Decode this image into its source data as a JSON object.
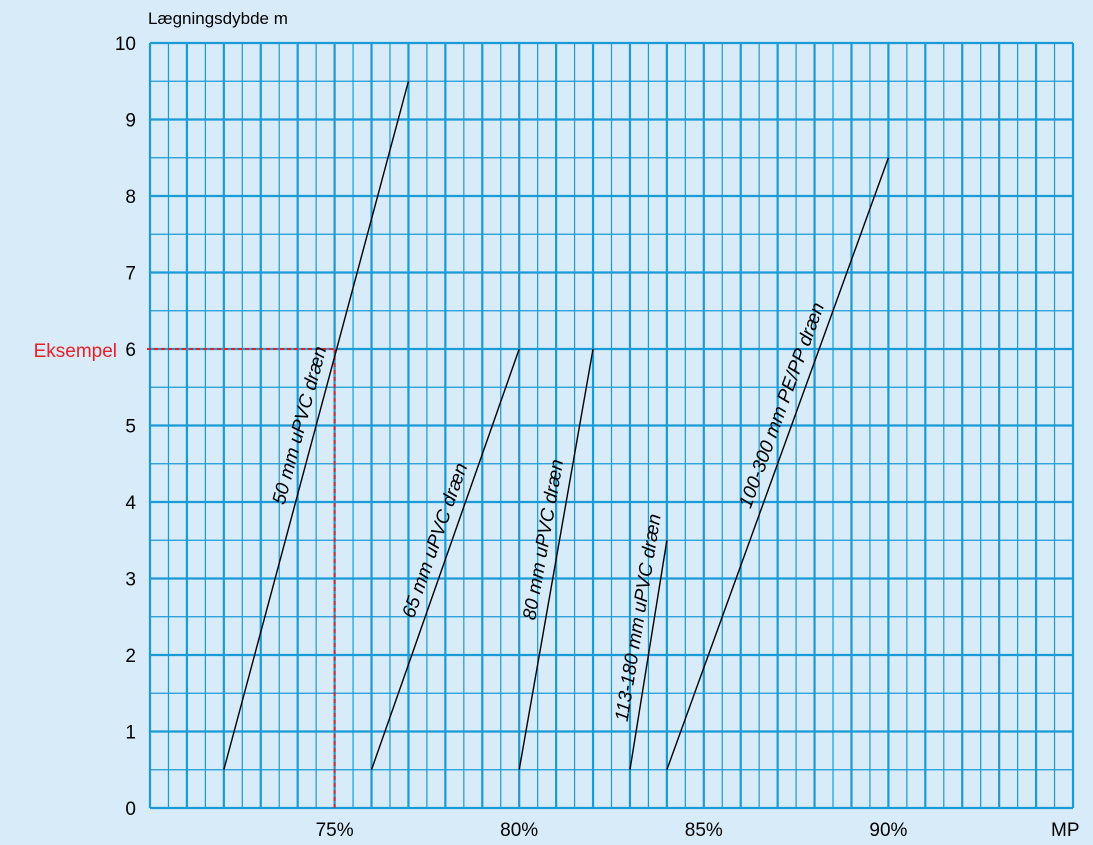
{
  "chart_data": {
    "type": "line",
    "ylabel": "Lægningsdybde m",
    "xlabel": "MP",
    "xlim": [
      70,
      95
    ],
    "ylim": [
      0,
      10
    ],
    "x_ticks": [
      75,
      80,
      85,
      90
    ],
    "x_tick_labels": [
      "75%",
      "80%",
      "85%",
      "90%"
    ],
    "y_ticks": [
      0,
      1,
      2,
      3,
      4,
      5,
      6,
      7,
      8,
      9,
      10
    ],
    "y_tick_labels": [
      "0",
      "1",
      "2",
      "3",
      "4",
      "5",
      "6",
      "7",
      "8",
      "9",
      "10"
    ],
    "grid": true,
    "series": [
      {
        "name": "50 mm uPVC dræn",
        "x": [
          72,
          77
        ],
        "y": [
          0.5,
          9.5
        ]
      },
      {
        "name": "65 mm uPVC dræn",
        "x": [
          76,
          80
        ],
        "y": [
          0.5,
          6
        ]
      },
      {
        "name": "80 mm uPVC dræn",
        "x": [
          80,
          82
        ],
        "y": [
          0.5,
          6
        ]
      },
      {
        "name": "113-180 mm uPVC dræn",
        "x": [
          83,
          84
        ],
        "y": [
          0.5,
          3.5
        ]
      },
      {
        "name": "100-300 mm PE/PP dræn",
        "x": [
          84,
          90
        ],
        "y": [
          0.5,
          8.5
        ]
      }
    ],
    "example": {
      "label": "Eksempel",
      "x": 75,
      "y": 6,
      "color": "#e8202a"
    }
  },
  "colors": {
    "background": "#d7ebf8",
    "grid_major": "#1a9ad6",
    "grid_minor": "#1a9ad6",
    "line": "#000000",
    "example": "#e8202a"
  }
}
